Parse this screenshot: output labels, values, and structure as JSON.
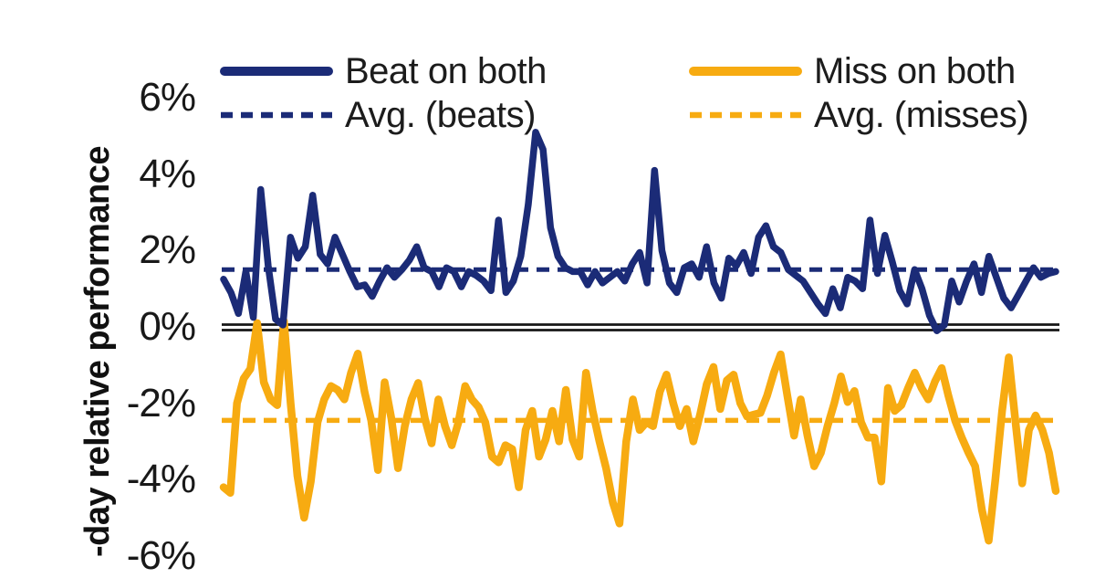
{
  "chart_data": {
    "type": "line",
    "title": "",
    "ylabel": "-day relative performance",
    "yticks": [
      "6%",
      "4%",
      "2%",
      "0%",
      "-2%",
      "-4%",
      "-6%"
    ],
    "ytick_values": [
      6,
      4,
      2,
      0,
      -2,
      -4,
      -6
    ],
    "ylim": [
      -6,
      7
    ],
    "grid": false,
    "x_tick_labels_visible": false,
    "zero_line": {
      "value": 0,
      "color": "#161616"
    },
    "colors": {
      "beats": "#1B2B77",
      "misses": "#F7AB11"
    },
    "legend": {
      "left": [
        {
          "label": "Beat on both"
        },
        {
          "label": "Avg. (beats)"
        }
      ],
      "right": [
        {
          "label": "Miss on both"
        },
        {
          "label": "Avg. (misses)"
        }
      ]
    },
    "series": [
      {
        "name": "Beat on both",
        "style": "solid",
        "color": "#1B2B77",
        "unit": "%",
        "values": [
          1.25,
          0.9,
          0.35,
          1.45,
          0.25,
          3.6,
          1.6,
          0.2,
          0.05,
          2.35,
          1.8,
          2.1,
          3.45,
          1.9,
          1.65,
          2.35,
          1.9,
          1.45,
          1.05,
          1.1,
          0.8,
          1.2,
          1.55,
          1.3,
          1.5,
          1.75,
          2.1,
          1.55,
          1.45,
          1.05,
          1.55,
          1.45,
          1.05,
          1.45,
          1.35,
          1.2,
          0.95,
          2.8,
          0.9,
          1.2,
          1.85,
          3.2,
          5.1,
          4.65,
          2.6,
          1.85,
          1.55,
          1.45,
          1.45,
          1.1,
          1.45,
          1.15,
          1.3,
          1.45,
          1.2,
          1.65,
          1.95,
          1.15,
          4.1,
          2.0,
          1.15,
          0.9,
          1.55,
          1.65,
          1.3,
          2.1,
          1.15,
          0.75,
          1.8,
          1.6,
          1.95,
          1.4,
          2.35,
          2.65,
          2.1,
          1.95,
          1.5,
          1.35,
          1.2,
          0.9,
          0.6,
          0.35,
          1.0,
          0.5,
          1.3,
          1.2,
          1.0,
          2.8,
          1.4,
          2.4,
          1.7,
          0.95,
          0.6,
          1.5,
          1.0,
          0.3,
          -0.1,
          0.05,
          1.2,
          0.65,
          1.2,
          1.65,
          0.9,
          1.85,
          1.3,
          0.75,
          0.5,
          0.85,
          1.2,
          1.55,
          1.3,
          1.4,
          1.45
        ]
      },
      {
        "name": "Avg. (beats)",
        "style": "dashed",
        "color": "#1B2B77",
        "unit": "%",
        "average_value": 1.5
      },
      {
        "name": "Miss on both",
        "style": "solid",
        "color": "#F7AB11",
        "unit": "%",
        "values": [
          -4.2,
          -4.35,
          -2.0,
          -1.35,
          -1.1,
          0.1,
          -1.45,
          -1.9,
          -2.05,
          0.15,
          -2.0,
          -3.9,
          -5.0,
          -4.05,
          -2.5,
          -1.9,
          -1.55,
          -1.65,
          -1.9,
          -1.2,
          -0.7,
          -1.7,
          -2.45,
          -3.75,
          -1.45,
          -2.4,
          -3.7,
          -2.6,
          -1.9,
          -1.47,
          -2.4,
          -3.05,
          -1.9,
          -2.6,
          -3.1,
          -2.5,
          -1.55,
          -1.9,
          -2.1,
          -2.5,
          -3.4,
          -3.55,
          -3.1,
          -3.2,
          -4.2,
          -2.7,
          -2.2,
          -3.4,
          -2.95,
          -2.2,
          -3.0,
          -1.65,
          -2.95,
          -3.4,
          -1.2,
          -2.2,
          -3.0,
          -3.7,
          -4.6,
          -5.15,
          -3.0,
          -1.9,
          -2.7,
          -2.5,
          -2.6,
          -1.7,
          -1.25,
          -2.0,
          -2.6,
          -2.15,
          -3.0,
          -2.3,
          -1.5,
          -1.05,
          -2.15,
          -1.4,
          -1.25,
          -2.0,
          -2.35,
          -2.3,
          -2.25,
          -1.8,
          -1.2,
          -0.72,
          -1.8,
          -2.85,
          -1.9,
          -2.85,
          -3.65,
          -3.3,
          -2.6,
          -2.0,
          -1.3,
          -1.97,
          -1.68,
          -2.5,
          -2.9,
          -2.9,
          -4.05,
          -1.6,
          -2.2,
          -2.05,
          -1.6,
          -1.2,
          -1.6,
          -1.9,
          -1.43,
          -1.08,
          -1.8,
          -2.45,
          -2.9,
          -3.3,
          -3.65,
          -4.8,
          -5.6,
          -4.0,
          -2.2,
          -0.8,
          -2.5,
          -4.1,
          -2.7,
          -2.32,
          -2.7,
          -3.3,
          -4.3
        ]
      },
      {
        "name": "Avg. (misses)",
        "style": "dashed",
        "color": "#F7AB11",
        "unit": "%",
        "average_value": -2.45
      }
    ]
  }
}
